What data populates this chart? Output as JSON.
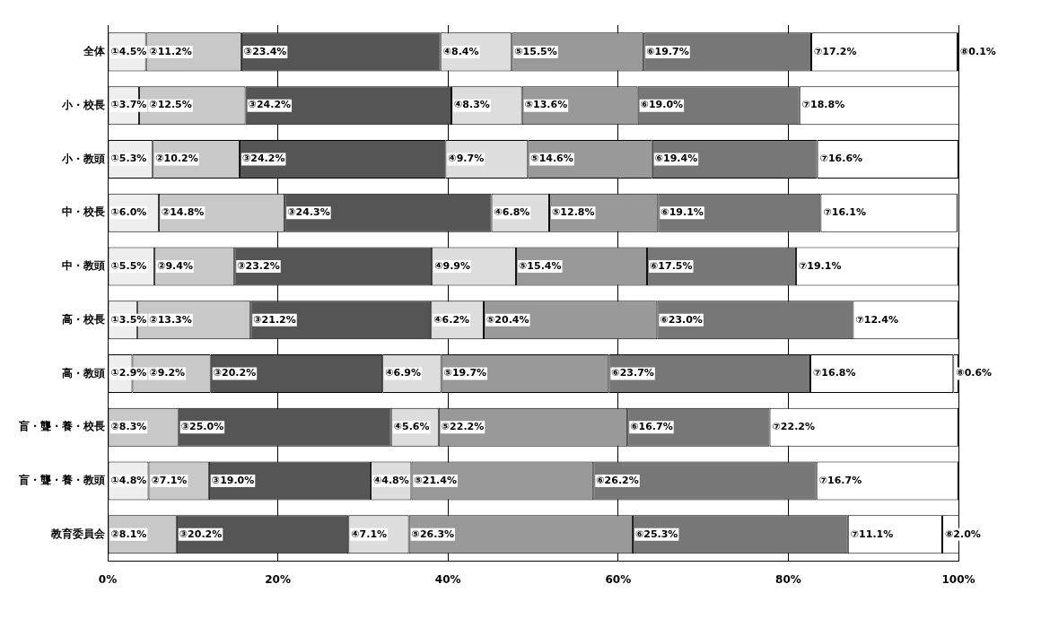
{
  "chart_data": {
    "type": "bar",
    "orientation": "horizontal",
    "stacked": true,
    "categories": [
      "全体",
      "小・校長",
      "小・教頭",
      "中・校長",
      "中・教頭",
      "高・校長",
      "高・教頭",
      "盲・聾・養・校長",
      "盲・聾・養・教頭",
      "教育委員会"
    ],
    "series": [
      {
        "color": "#eeeeee",
        "values": [
          4.5,
          3.7,
          5.3,
          6.0,
          5.5,
          3.5,
          2.9,
          0,
          4.8,
          null
        ],
        "value_labels": [
          "①4.5%",
          "①3.7%",
          "①5.3%",
          "①6.0%",
          "①5.5%",
          "①3.5%",
          "①2.9%",
          null,
          "①4.8%",
          null
        ]
      },
      {
        "color": "#c8c8c8",
        "values": [
          11.2,
          12.5,
          10.2,
          14.8,
          9.4,
          13.3,
          9.2,
          8.3,
          7.1,
          8.1
        ],
        "value_labels": [
          "②11.2%",
          "②12.5%",
          "②10.2%",
          "②14.8%",
          "②9.4%",
          "②13.3%",
          "②9.2%",
          "②8.3%",
          "②7.1%",
          "②8.1%"
        ]
      },
      {
        "color": "#555555",
        "values": [
          23.4,
          24.2,
          24.2,
          24.3,
          23.2,
          21.2,
          20.2,
          25.0,
          19.0,
          20.2
        ],
        "value_labels": [
          "③23.4%",
          "③24.2%",
          "③24.2%",
          "③24.3%",
          "③23.2%",
          "③21.2%",
          "③20.2%",
          "③25.0%",
          "③19.0%",
          "③20.2%"
        ]
      },
      {
        "color": "#dddddd",
        "values": [
          8.4,
          8.3,
          9.7,
          6.8,
          9.9,
          6.2,
          6.9,
          5.6,
          4.8,
          7.1
        ],
        "value_labels": [
          "④8.4%",
          "④8.3%",
          "④9.7%",
          "④6.8%",
          "④9.9%",
          "④6.2%",
          "④6.9%",
          "④5.6%",
          "④4.8%",
          "④7.1%"
        ]
      },
      {
        "color": "#999999",
        "values": [
          15.5,
          13.6,
          14.6,
          12.8,
          15.4,
          20.4,
          19.7,
          22.2,
          21.4,
          26.3
        ],
        "value_labels": [
          "⑤15.5%",
          "⑤13.6%",
          "⑤14.6%",
          "⑤12.8%",
          "⑤15.4%",
          "⑤20.4%",
          "⑤19.7%",
          "⑤22.2%",
          "⑤21.4%",
          "⑤26.3%"
        ]
      },
      {
        "color": "#777777",
        "values": [
          19.7,
          19.0,
          19.4,
          19.1,
          17.5,
          23.0,
          23.7,
          16.7,
          26.2,
          25.3
        ],
        "value_labels": [
          "⑥19.7%",
          "⑥19.0%",
          "⑥19.4%",
          "⑥19.1%",
          "⑥17.5%",
          "⑥23.0%",
          "⑥23.7%",
          "⑥16.7%",
          "⑥26.2%",
          "⑥25.3%"
        ]
      },
      {
        "color": "#ffffff",
        "values": [
          17.2,
          18.8,
          16.6,
          16.1,
          19.1,
          12.4,
          16.8,
          22.2,
          16.7,
          11.1
        ],
        "value_labels": [
          "⑦17.2%",
          "⑦18.8%",
          "⑦16.6%",
          "⑦16.1%",
          "⑦19.1%",
          "⑦12.4%",
          "⑦16.8%",
          "⑦22.2%",
          "⑦16.7%",
          "⑦11.1%"
        ]
      },
      {
        "color": "#ffffff",
        "values": [
          0.1,
          null,
          null,
          null,
          null,
          null,
          0.6,
          null,
          null,
          2.0
        ],
        "value_labels": [
          "⑧0.1%",
          null,
          null,
          null,
          null,
          null,
          "⑧0.6%",
          null,
          null,
          "⑧2.0%"
        ]
      }
    ],
    "xlim": [
      0,
      100
    ],
    "xticks": [
      {
        "value": 0,
        "label": "0%"
      },
      {
        "value": 20,
        "label": "20%"
      },
      {
        "value": 40,
        "label": "40%"
      },
      {
        "value": 60,
        "label": "60%"
      },
      {
        "value": 80,
        "label": "80%"
      },
      {
        "value": 100,
        "label": "100%"
      }
    ],
    "grid": "x",
    "legend": false
  }
}
